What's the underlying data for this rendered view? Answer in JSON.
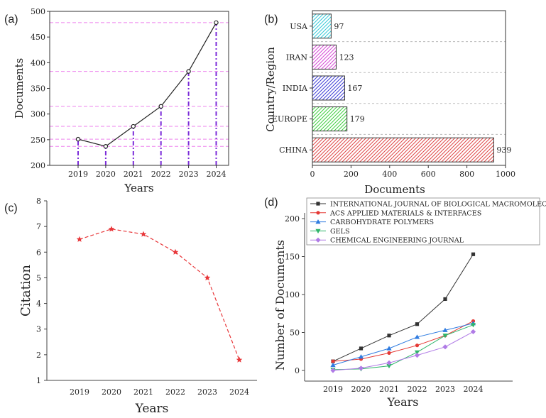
{
  "chart_data": [
    {
      "panel_label": "(a)",
      "type": "line",
      "x": [
        "2019",
        "2020",
        "2021",
        "2022",
        "2023",
        "2024"
      ],
      "series": [
        {
          "values": [
            251,
            237,
            276,
            315,
            383,
            478
          ]
        }
      ],
      "xlabel": "Years",
      "ylabel": "Documents",
      "ylim": [
        200,
        500
      ],
      "yticks": [
        "200",
        "250",
        "300",
        "350",
        "400",
        "450",
        "500"
      ],
      "colors": {
        "line": "#222222",
        "drop_lines": "#7b2bd9",
        "guide_lines": "#ee82ee"
      }
    },
    {
      "panel_label": "(b)",
      "type": "bar",
      "orientation": "horizontal",
      "categories": [
        "USA",
        "IRAN",
        "INDIA",
        "EUROPE",
        "CHINA"
      ],
      "values": [
        97,
        123,
        167,
        179,
        939
      ],
      "value_labels": [
        "97",
        "123",
        "167",
        "179",
        "939"
      ],
      "xlabel": "Documents",
      "ylabel": "Country/Region",
      "xlim": [
        0,
        1000
      ],
      "xticks": [
        "0",
        "200",
        "400",
        "600",
        "800",
        "1000"
      ],
      "colors": [
        "#35c8d8",
        "#d649d6",
        "#3d3dd6",
        "#3fcf3f",
        "#e04646"
      ]
    },
    {
      "panel_label": "(c)",
      "type": "line",
      "x": [
        "2019",
        "2020",
        "2021",
        "2022",
        "2023",
        "2024"
      ],
      "series": [
        {
          "values": [
            6.5,
            6.9,
            6.7,
            6.0,
            5.0,
            1.8
          ]
        }
      ],
      "xlabel": "Years",
      "ylabel": "Citation",
      "ylim": [
        1,
        8
      ],
      "yticks": [
        "1",
        "2",
        "3",
        "4",
        "5",
        "6",
        "7",
        "8"
      ],
      "colors": {
        "line": "#e8373a"
      }
    },
    {
      "panel_label": "(d)",
      "type": "line",
      "x": [
        "2019",
        "2020",
        "2021",
        "2022",
        "2023",
        "2024"
      ],
      "series": [
        {
          "name": "INTERNATIONAL JOURNAL OF BIOLOGICAL MACROMOLECULES",
          "values": [
            12,
            29,
            46,
            61,
            94,
            153
          ],
          "color": "#333333",
          "marker": "square"
        },
        {
          "name": "ACS APPLIED MATERIALS & INTERFACES",
          "values": [
            12,
            15,
            23,
            33,
            46,
            65
          ],
          "color": "#e53935",
          "marker": "circle"
        },
        {
          "name": "CARBOHYDRATE POLYMERS",
          "values": [
            7,
            18,
            29,
            44,
            53,
            62
          ],
          "color": "#2e7be0",
          "marker": "triangle-up"
        },
        {
          "name": "GELS",
          "values": [
            1,
            2,
            6,
            24,
            46,
            60
          ],
          "color": "#2fb56a",
          "marker": "triangle-down"
        },
        {
          "name": "CHEMICAL ENGINEERING JOURNAL",
          "values": [
            0,
            3,
            10,
            20,
            31,
            51
          ],
          "color": "#b07be6",
          "marker": "diamond"
        }
      ],
      "xlabel": "Years",
      "ylabel": "Number of Documents",
      "ylim": [
        0,
        200
      ],
      "yticks": [
        "0",
        "50",
        "100",
        "150",
        "200"
      ],
      "legend": "top"
    }
  ]
}
